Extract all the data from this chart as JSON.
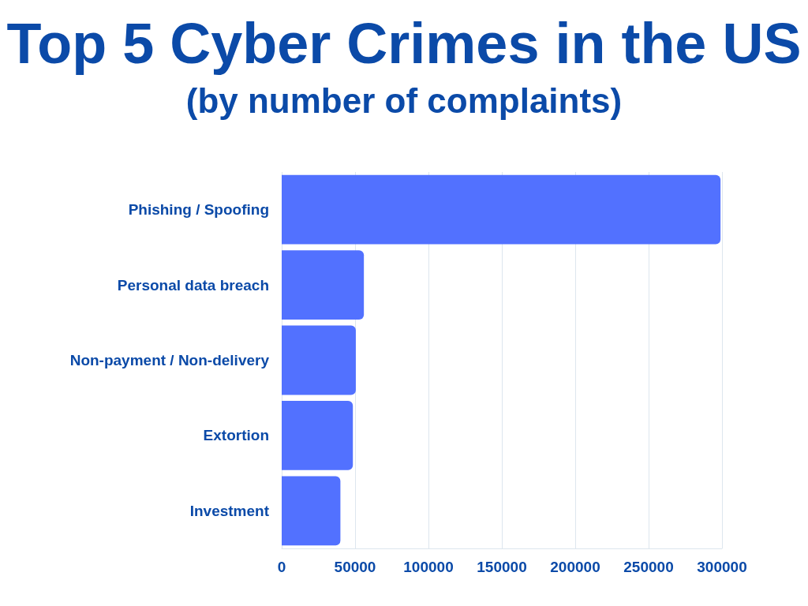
{
  "chart_data": {
    "type": "bar",
    "orientation": "horizontal",
    "title": "Top 5 Cyber Crimes in the US",
    "subtitle": "(by number of complaints)",
    "categories": [
      "Phishing / Spoofing",
      "Personal data breach",
      "Non-payment / Non-delivery",
      "Extortion",
      "Investment"
    ],
    "values": [
      299000,
      56000,
      50500,
      48500,
      40000
    ],
    "color": "#5271ff",
    "xlim": [
      0,
      300000
    ],
    "xticks": [
      0,
      50000,
      100000,
      150000,
      200000,
      250000,
      300000
    ],
    "grid": "x"
  }
}
